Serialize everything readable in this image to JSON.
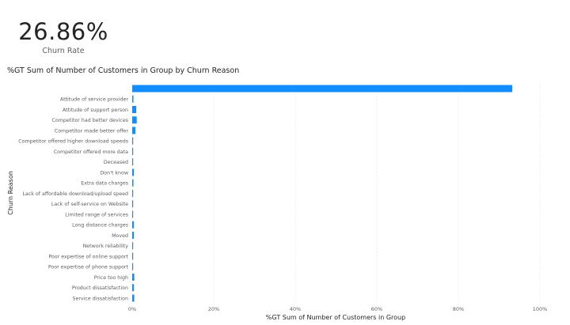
{
  "kpi": {
    "value": "26.86%",
    "label": "Churn Rate"
  },
  "chart_data": {
    "type": "bar",
    "orientation": "horizontal",
    "title": "%GT Sum of Number of Customers in Group by Churn Reason",
    "xlabel": "%GT Sum of Number of Customers in Group",
    "ylabel": "Churn Reason",
    "xlim": [
      0,
      100
    ],
    "xticks": [
      "0%",
      "20%",
      "40%",
      "60%",
      "80%",
      "100%"
    ],
    "grid": true,
    "bar_color": "#118DFF",
    "categories": [
      "",
      "Attitude of service provider",
      "Attitude of support person",
      "Competitor had better devices",
      "Competitor made better offer",
      "Competitor offered higher download speeds",
      "Competitor offered more data",
      "Deceased",
      "Don't know",
      "Extra data charges",
      "Lack of affordable download/upload speed",
      "Lack of self-service on Website",
      "Limited range of services",
      "Long distance charges",
      "Moved",
      "Network reliability",
      "Poor expertise of online support",
      "Poor expertise of phone support",
      "Price too high",
      "Product dissatisfaction",
      "Service dissatisfaction"
    ],
    "values": [
      93.2,
      0.3,
      1.0,
      1.1,
      0.8,
      0.2,
      0.2,
      0.1,
      0.4,
      0.3,
      0.2,
      0.2,
      0.2,
      0.4,
      0.4,
      0.2,
      0.2,
      0.2,
      0.5,
      0.4,
      0.5
    ]
  }
}
